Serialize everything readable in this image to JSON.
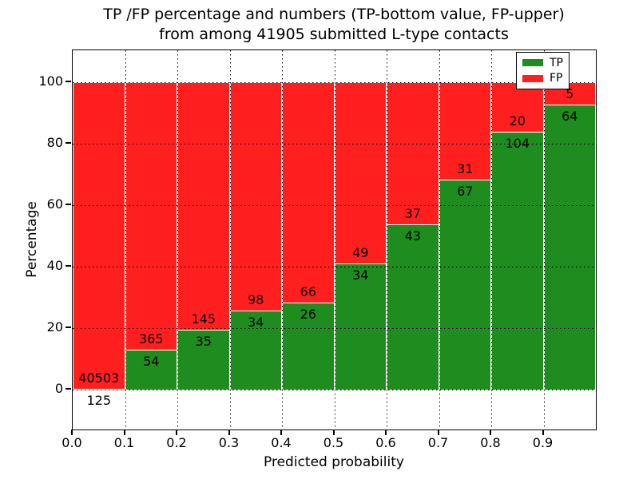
{
  "title": {
    "line1": "TP /FP percentage and numbers (TP-bottom value, FP-upper)",
    "line2": "from among 41905 submitted L-type contacts"
  },
  "chart_data": {
    "type": "bar",
    "subtype": "stacked-percentage-histogram",
    "title": "TP /FP percentage and numbers (TP-bottom value, FP-upper) from among 41905 submitted L-type contacts",
    "xlabel": "Predicted probability",
    "ylabel": "Percentage",
    "total_submitted": 41905,
    "xlim": [
      0.0,
      1.0
    ],
    "ylim": [
      -13,
      110
    ],
    "grid": "dotted",
    "legend_position": "upper right",
    "bin_width": 0.1,
    "categories": [
      "0.0-0.1",
      "0.1-0.2",
      "0.2-0.3",
      "0.3-0.4",
      "0.4-0.5",
      "0.5-0.6",
      "0.6-0.7",
      "0.7-0.8",
      "0.8-0.9",
      "0.9-1.0"
    ],
    "x_tick_labels": [
      "0.0",
      "0.1",
      "0.2",
      "0.3",
      "0.4",
      "0.5",
      "0.6",
      "0.7",
      "0.8",
      "0.9"
    ],
    "y_tick_labels": [
      "0",
      "20",
      "40",
      "60",
      "80",
      "100"
    ],
    "y_ticks": [
      0,
      20,
      40,
      60,
      80,
      100
    ],
    "series": [
      {
        "name": "TP",
        "color": "#1e8c1e",
        "counts": [
          125,
          54,
          35,
          34,
          26,
          34,
          43,
          67,
          104,
          64
        ],
        "percents": [
          0.31,
          12.89,
          19.44,
          25.76,
          28.26,
          40.96,
          53.75,
          68.37,
          83.87,
          92.75
        ]
      },
      {
        "name": "FP",
        "color": "#ff1f1f",
        "counts": [
          40503,
          365,
          145,
          98,
          66,
          49,
          37,
          31,
          20,
          5
        ],
        "percents": [
          99.69,
          87.11,
          80.56,
          74.24,
          71.74,
          59.04,
          46.25,
          31.63,
          16.13,
          7.25
        ]
      }
    ]
  }
}
